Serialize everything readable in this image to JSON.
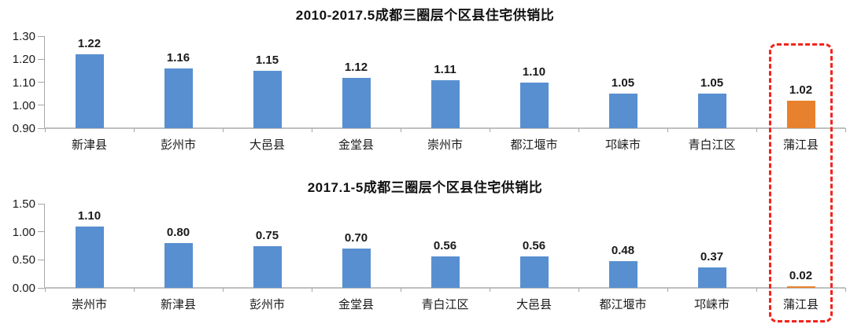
{
  "page": {
    "background": "#ffffff"
  },
  "colors": {
    "bar_blue": "#588FD0",
    "bar_orange": "#E8812D",
    "highlight_box_red": "#F5221B",
    "axis_line": "#A6A6A6",
    "baseline": "#BFBFBF",
    "text": "#1A1A1A"
  },
  "highlight": {
    "category": "蒲江县",
    "style": "red dashed rounded rectangle spanning both charts around the last column"
  },
  "chart_data": [
    {
      "type": "bar",
      "title": "2010-2017.5成都三圈层个区县住宅供销比",
      "categories": [
        "新津县",
        "彭州市",
        "大邑县",
        "金堂县",
        "崇州市",
        "都江堰市",
        "邛崃市",
        "青白江区",
        "蒲江县"
      ],
      "values": [
        1.22,
        1.16,
        1.15,
        1.12,
        1.11,
        1.1,
        1.05,
        1.05,
        1.02
      ],
      "value_labels": [
        "1.22",
        "1.16",
        "1.15",
        "1.12",
        "1.11",
        "1.10",
        "1.05",
        "1.05",
        "1.02"
      ],
      "xlabel": "",
      "ylabel": "",
      "ylim": [
        0.9,
        1.3
      ],
      "yticks": [
        "1.30",
        "1.20",
        "1.10",
        "1.00",
        "0.90"
      ],
      "grid": false,
      "legend": "none",
      "highlight_index": 8
    },
    {
      "type": "bar",
      "title": "2017.1-5成都三圈层个区县住宅供销比",
      "categories": [
        "崇州市",
        "新津县",
        "彭州市",
        "金堂县",
        "青白江区",
        "大邑县",
        "都江堰市",
        "邛崃市",
        "蒲江县"
      ],
      "values": [
        1.1,
        0.8,
        0.75,
        0.7,
        0.56,
        0.56,
        0.48,
        0.37,
        0.02
      ],
      "value_labels": [
        "1.10",
        "0.80",
        "0.75",
        "0.70",
        "0.56",
        "0.56",
        "0.48",
        "0.37",
        "0.02"
      ],
      "xlabel": "",
      "ylabel": "",
      "ylim": [
        0.0,
        1.5
      ],
      "yticks": [
        "1.50",
        "1.00",
        "0.50",
        "0.00"
      ],
      "grid": false,
      "legend": "none",
      "highlight_index": 8
    }
  ]
}
